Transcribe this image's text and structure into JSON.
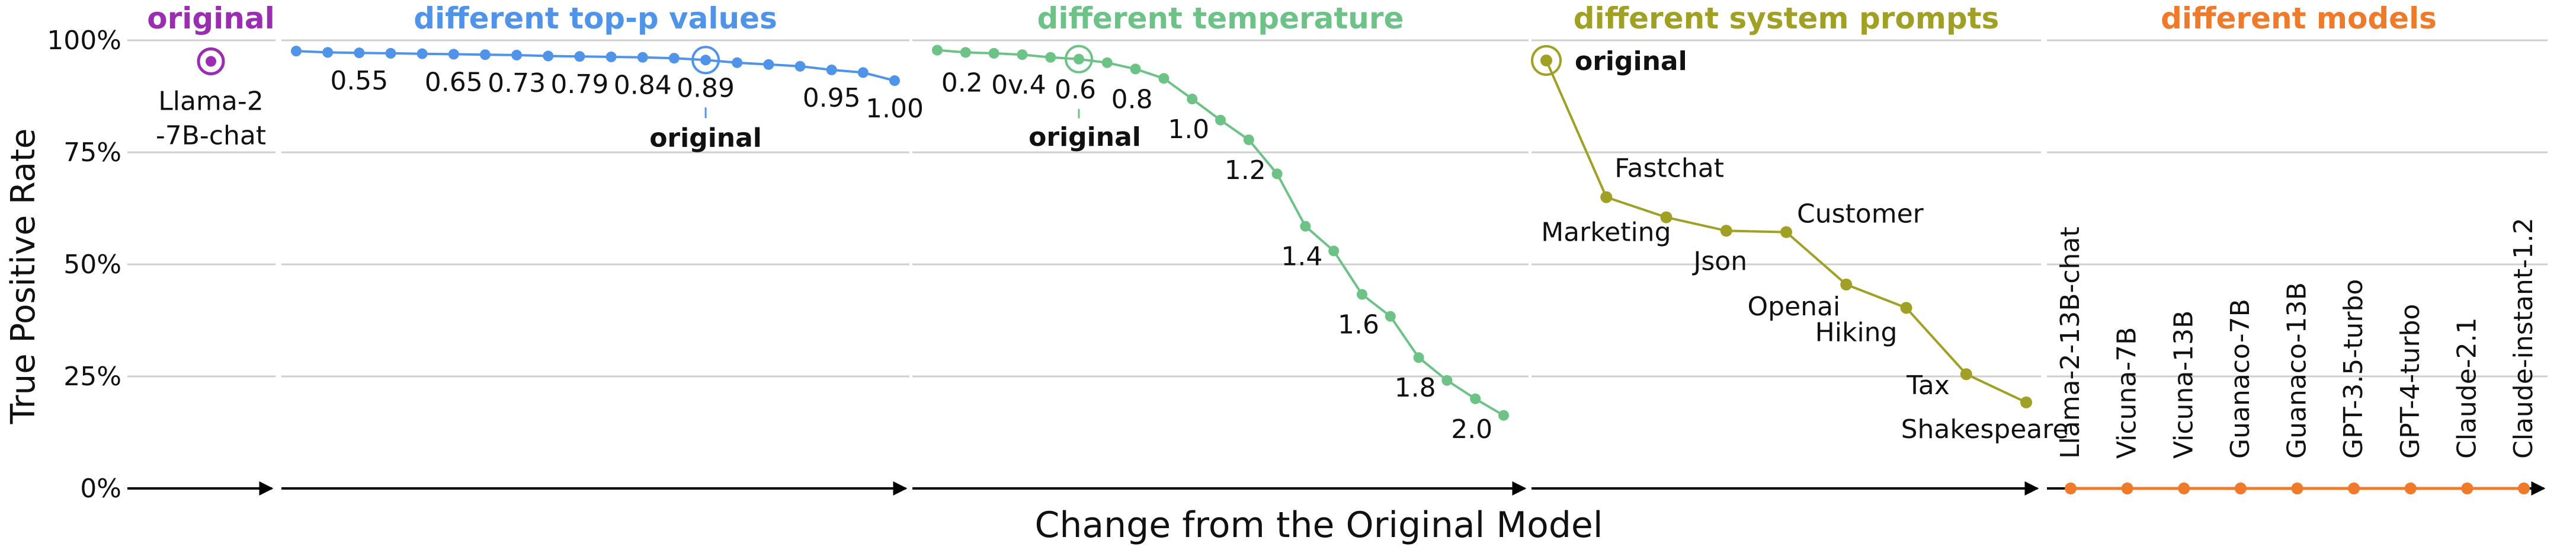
{
  "chart_data": {
    "type": "line",
    "ylabel": "True Positive Rate",
    "xlabel": "Change from the Original Model",
    "ylim": [
      0,
      100
    ],
    "yticks": [
      "0%",
      "25%",
      "50%",
      "75%",
      "100%"
    ],
    "grid": true,
    "colors": {
      "original": "#9b2db3",
      "top_p": "#4f94e8",
      "temperature": "#6cc287",
      "system_prompts": "#a0a024",
      "models": "#ef7a2a",
      "grid": "#cfcfcf",
      "axis": "#000000"
    },
    "panels": [
      {
        "title": "original",
        "color_key": "original",
        "points": [
          {
            "label": "Llama-2\n-7B-chat",
            "y": 95.3
          }
        ]
      },
      {
        "title": "different top-p values",
        "color_key": "top_p",
        "values": [
          97.6,
          97.3,
          97.2,
          97.1,
          97.0,
          96.9,
          96.8,
          96.7,
          96.5,
          96.4,
          96.3,
          96.2,
          96.0,
          95.6,
          95.0,
          94.6,
          94.2,
          93.4,
          92.8,
          91.0
        ],
        "labels": [
          {
            "text": "0.55",
            "i": 2
          },
          {
            "text": "0.65",
            "i": 5
          },
          {
            "text": "0.73",
            "i": 7
          },
          {
            "text": "0.79",
            "i": 9
          },
          {
            "text": "0.84",
            "i": 11
          },
          {
            "text": "0.89",
            "i": 13
          },
          {
            "text": "0.95",
            "i": 17
          },
          {
            "text": "1.00",
            "i": 19
          }
        ],
        "original_index": 13,
        "original_label": "original"
      },
      {
        "title": "different temperature",
        "color_key": "temperature",
        "values": [
          97.8,
          97.3,
          97.1,
          96.8,
          96.2,
          95.8,
          95.0,
          93.6,
          91.5,
          86.9,
          82.2,
          77.8,
          70.2,
          58.5,
          53.0,
          43.3,
          38.4,
          29.2,
          24.1,
          20.0,
          16.3
        ],
        "labels": [
          {
            "text": "0.2",
            "i": 1
          },
          {
            "text": "0v.4",
            "i": 3
          },
          {
            "text": "0.6",
            "i": 5
          },
          {
            "text": "0.8",
            "i": 7
          },
          {
            "text": "1.0",
            "i": 9
          },
          {
            "text": "1.2",
            "i": 11
          },
          {
            "text": "1.4",
            "i": 13
          },
          {
            "text": "1.6",
            "i": 15
          },
          {
            "text": "1.8",
            "i": 17
          },
          {
            "text": "2.0",
            "i": 19
          }
        ],
        "original_index": 5,
        "original_label": "original"
      },
      {
        "title": "different system prompts",
        "color_key": "system_prompts",
        "categories": [
          "original",
          "Fastchat",
          "Marketing",
          "Json",
          "Customer",
          "Openai",
          "Hiking",
          "Tax",
          "Shakespeare"
        ],
        "values": [
          95.5,
          65.0,
          60.5,
          57.5,
          57.2,
          45.5,
          40.3,
          25.5,
          19.2
        ]
      },
      {
        "title": "different models",
        "color_key": "models",
        "categories": [
          "Llama-2-13B-chat",
          "Vicuna-7B",
          "Vicuna-13B",
          "Guanaco-7B",
          "Guanaco-13B",
          "GPT-3.5-turbo",
          "GPT-4-turbo",
          "Claude-2.1",
          "Claude-instant-1.2"
        ],
        "values": [
          0,
          0,
          0,
          0,
          0,
          0,
          0,
          0,
          0
        ]
      }
    ]
  }
}
